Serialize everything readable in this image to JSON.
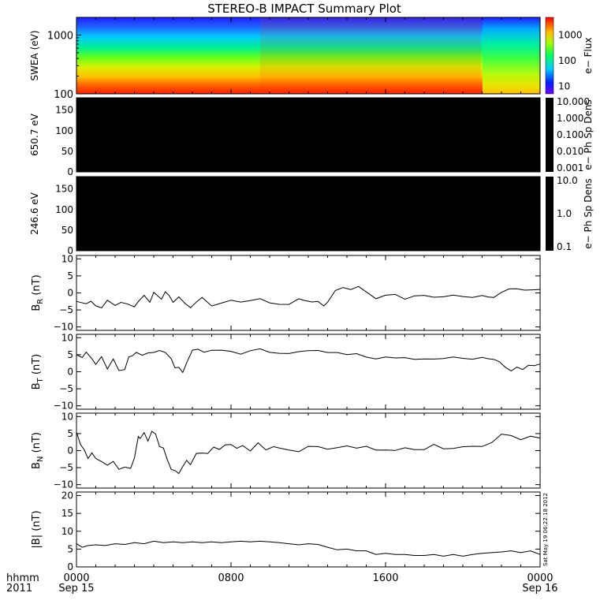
{
  "title": "STEREO-B IMPACT Summary Plot",
  "chart_data": [
    {
      "type": "heatmap",
      "panel": "swea",
      "ylabel": "SWEA (eV)",
      "y_ticks": [
        "1000",
        "100"
      ],
      "y_log": true,
      "ylim": [
        100,
        2000
      ],
      "colorbar_label": "e− Flux",
      "colorbar_ticks": [
        "1000",
        "100",
        "10"
      ],
      "colorbar_range": [
        5,
        5000
      ]
    },
    {
      "type": "heatmap",
      "panel": "pad650",
      "ylabel": "650.7 eV",
      "y_ticks": [
        "150",
        "100",
        "50",
        "0"
      ],
      "ylim": [
        0,
        180
      ],
      "fill": "#000000",
      "colorbar_label": "e− Ph Sp Dens",
      "colorbar_ticks": [
        "10.000",
        "1.000",
        "0.100",
        "0.010",
        "0.001"
      ]
    },
    {
      "type": "heatmap",
      "panel": "pad246",
      "ylabel": "246.6 eV",
      "y_ticks": [
        "150",
        "100",
        "50",
        "0"
      ],
      "ylim": [
        0,
        180
      ],
      "fill": "#000000",
      "colorbar_label": "e− Ph Sp Dens",
      "colorbar_ticks": [
        "10.0",
        "1.0",
        "0.1"
      ]
    },
    {
      "type": "line",
      "panel": "br",
      "ylabel_main": "B",
      "ylabel_sub": "R",
      "ylabel_unit": " (nT)",
      "y_ticks": [
        "10",
        "5",
        "0",
        "−5",
        "−10"
      ],
      "ylim": [
        -11,
        11
      ],
      "x": [
        0.0,
        0.5,
        0.75,
        1.0,
        1.3,
        1.6,
        2.0,
        2.3,
        2.6,
        3.0,
        3.2,
        3.5,
        3.8,
        4.0,
        4.4,
        4.6,
        4.8,
        5.0,
        5.3,
        5.6,
        5.9,
        6.2,
        6.5,
        7.0,
        7.5,
        8.0,
        8.5,
        9.0,
        9.5,
        10.0,
        10.5,
        11.0,
        11.5,
        11.8,
        12.2,
        12.5,
        12.8,
        13.0,
        13.4,
        13.8,
        14.2,
        14.6,
        15.0,
        15.5,
        16.0,
        16.5,
        17.0,
        17.5,
        18.0,
        18.5,
        19.0,
        19.5,
        20.0,
        20.5,
        21.0,
        21.3,
        21.6,
        22.0,
        22.4,
        22.8,
        23.2,
        23.6,
        24.0
      ],
      "y": [
        -2.5,
        -3.5,
        -2.5,
        -3.5,
        -4.5,
        -2.5,
        -4.0,
        -3.0,
        -3.0,
        -4.0,
        -2.5,
        -1.0,
        -3.0,
        0.5,
        -1.5,
        0.0,
        -0.5,
        -3.0,
        -1.5,
        -3.0,
        -4.0,
        -2.5,
        -1.5,
        -3.5,
        -3.0,
        -2.5,
        -2.5,
        -2.0,
        -2.0,
        -3.0,
        -3.0,
        -3.5,
        -2.0,
        -2.5,
        -3.0,
        -2.5,
        -3.5,
        -3.0,
        0.5,
        1.5,
        1.0,
        2.0,
        0.5,
        -1.5,
        -1.0,
        -0.5,
        -1.5,
        -1.0,
        -1.0,
        -1.0,
        -1.0,
        -1.0,
        -1.0,
        -1.0,
        -1.0,
        -1.0,
        -1.0,
        0.5,
        1.5,
        1.5,
        1.0,
        1.0,
        1.0
      ]
    },
    {
      "type": "line",
      "panel": "bt",
      "ylabel_main": "B",
      "ylabel_sub": "T",
      "ylabel_unit": " (nT)",
      "y_ticks": [
        "10",
        "5",
        "0",
        "−5",
        "−10"
      ],
      "ylim": [
        -11,
        11
      ],
      "x": [
        0.0,
        0.3,
        0.5,
        0.8,
        1.0,
        1.3,
        1.6,
        1.9,
        2.2,
        2.5,
        2.7,
        2.9,
        3.1,
        3.4,
        3.7,
        4.0,
        4.3,
        4.6,
        4.9,
        5.1,
        5.3,
        5.5,
        5.7,
        6.0,
        6.3,
        6.6,
        7.0,
        7.5,
        8.0,
        8.5,
        9.0,
        9.5,
        10.0,
        10.5,
        11.0,
        11.5,
        12.0,
        12.5,
        13.0,
        13.5,
        14.0,
        14.5,
        15.0,
        15.5,
        16.0,
        16.5,
        17.0,
        17.5,
        18.0,
        18.5,
        19.0,
        19.5,
        20.0,
        20.5,
        21.0,
        21.3,
        21.6,
        21.9,
        22.2,
        22.5,
        22.8,
        23.1,
        23.4,
        23.7,
        24.0
      ],
      "y": [
        5.0,
        4.5,
        5.5,
        3.5,
        2.5,
        4.5,
        0.5,
        3.5,
        0.5,
        1.0,
        4.0,
        5.0,
        5.5,
        4.5,
        5.5,
        6.0,
        6.5,
        5.5,
        3.5,
        1.5,
        1.0,
        0.0,
        2.5,
        6.0,
        6.5,
        6.0,
        6.5,
        6.0,
        6.0,
        5.5,
        6.0,
        6.5,
        6.0,
        5.5,
        5.0,
        6.0,
        6.5,
        6.0,
        5.5,
        6.0,
        5.0,
        5.0,
        4.5,
        4.0,
        4.0,
        4.0,
        4.5,
        3.5,
        3.5,
        4.0,
        4.0,
        4.0,
        4.0,
        4.0,
        4.0,
        4.0,
        4.0,
        3.0,
        1.0,
        0.0,
        1.5,
        1.0,
        2.0,
        1.5,
        2.0
      ]
    },
    {
      "type": "line",
      "panel": "bn",
      "ylabel_main": "B",
      "ylabel_sub": "N",
      "ylabel_unit": " (nT)",
      "y_ticks": [
        "10",
        "5",
        "0",
        "−5",
        "−10"
      ],
      "ylim": [
        -11,
        11
      ],
      "x": [
        0.0,
        0.2,
        0.4,
        0.6,
        0.8,
        1.0,
        1.3,
        1.6,
        1.9,
        2.2,
        2.5,
        2.8,
        3.0,
        3.2,
        3.3,
        3.5,
        3.7,
        3.9,
        4.1,
        4.3,
        4.5,
        4.7,
        4.9,
        5.1,
        5.3,
        5.5,
        5.7,
        5.9,
        6.2,
        6.5,
        6.8,
        7.1,
        7.4,
        7.7,
        8.0,
        8.3,
        8.6,
        9.0,
        9.4,
        9.8,
        10.2,
        10.6,
        11.0,
        11.5,
        12.0,
        12.5,
        13.0,
        13.5,
        14.0,
        14.5,
        15.0,
        15.5,
        16.0,
        16.5,
        17.0,
        17.5,
        18.0,
        18.5,
        19.0,
        19.5,
        20.0,
        20.5,
        21.0,
        21.5,
        22.0,
        22.5,
        23.0,
        23.5,
        24.0
      ],
      "y": [
        5.5,
        2.0,
        0.0,
        -2.0,
        -1.0,
        -2.0,
        -3.0,
        -4.5,
        -3.5,
        -5.5,
        -4.5,
        -5.0,
        -2.5,
        4.5,
        3.5,
        5.5,
        2.5,
        6.0,
        4.5,
        1.5,
        0.5,
        -2.5,
        -5.5,
        -6.0,
        -6.5,
        -5.0,
        -2.5,
        -4.5,
        -1.0,
        -0.5,
        -0.5,
        1.0,
        0.0,
        1.5,
        2.0,
        1.0,
        1.5,
        0.0,
        2.5,
        0.5,
        1.5,
        1.0,
        0.5,
        -0.5,
        1.0,
        1.5,
        0.5,
        0.5,
        1.5,
        1.0,
        1.0,
        0.0,
        0.5,
        0.0,
        0.5,
        0.5,
        0.5,
        1.5,
        0.5,
        1.0,
        1.0,
        1.0,
        1.5,
        2.5,
        4.5,
        4.5,
        3.5,
        4.0,
        3.5
      ]
    },
    {
      "type": "line",
      "panel": "bmag",
      "ylabel_main": "|B|",
      "ylabel_sub": "",
      "ylabel_unit": " (nT)",
      "y_ticks": [
        "20",
        "15",
        "10",
        "5",
        "0"
      ],
      "ylim": [
        0,
        21
      ],
      "x": [
        0.0,
        0.3,
        0.6,
        1.0,
        1.5,
        2.0,
        2.5,
        3.0,
        3.5,
        4.0,
        4.5,
        5.0,
        5.5,
        6.0,
        6.5,
        7.0,
        7.5,
        8.0,
        8.5,
        9.0,
        9.5,
        10.0,
        10.5,
        11.0,
        11.5,
        12.0,
        12.5,
        13.0,
        13.5,
        14.0,
        14.5,
        15.0,
        15.5,
        16.0,
        16.5,
        17.0,
        17.5,
        18.0,
        18.5,
        19.0,
        19.5,
        20.0,
        20.5,
        21.0,
        21.5,
        22.0,
        22.5,
        23.0,
        23.5,
        24.0
      ],
      "y": [
        6.5,
        5.5,
        6.0,
        6.2,
        6.0,
        6.5,
        6.3,
        6.8,
        6.5,
        7.2,
        6.8,
        7.0,
        6.8,
        7.0,
        6.8,
        7.0,
        6.8,
        7.0,
        7.2,
        7.0,
        7.2,
        7.0,
        6.8,
        6.5,
        6.2,
        6.5,
        6.3,
        5.5,
        4.8,
        5.0,
        4.5,
        4.5,
        3.5,
        3.8,
        3.5,
        3.5,
        3.2,
        3.2,
        3.5,
        3.0,
        3.5,
        3.0,
        3.5,
        3.8,
        4.0,
        4.2,
        4.5,
        4.0,
        4.5,
        3.5
      ]
    }
  ],
  "x_axis": {
    "range_hours": [
      0,
      24
    ],
    "tick_hours": [
      0,
      8,
      16,
      24
    ],
    "corner_label_1": "hhmm",
    "corner_label_2": "2011",
    "tick_labels_1": [
      "0000",
      "0800",
      "1600",
      "0000"
    ],
    "tick_labels_2": [
      "Sep 15",
      "",
      "",
      "Sep 16"
    ]
  },
  "timestamp": "Sat May 19 06:22:18 2012"
}
